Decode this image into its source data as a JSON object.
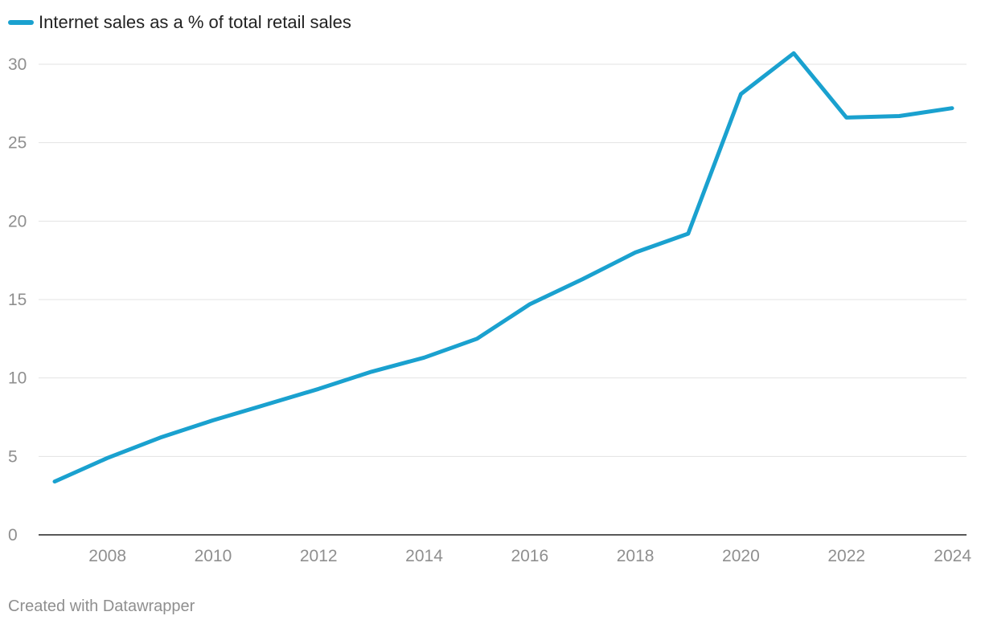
{
  "chart_data": {
    "type": "line",
    "title": "",
    "xlabel": "",
    "ylabel": "",
    "x": [
      2007,
      2008,
      2009,
      2010,
      2011,
      2012,
      2013,
      2014,
      2015,
      2016,
      2017,
      2018,
      2019,
      2020,
      2021,
      2022,
      2023,
      2024
    ],
    "series": [
      {
        "name": "Internet sales as a % of total retail sales",
        "color": "#1aa1cf",
        "values": [
          3.4,
          4.9,
          6.2,
          7.3,
          8.3,
          9.3,
          10.4,
          11.3,
          12.5,
          14.7,
          16.3,
          18.0,
          19.2,
          28.1,
          30.7,
          26.6,
          26.7,
          27.2
        ]
      }
    ],
    "xlim": [
      2007,
      2024
    ],
    "ylim": [
      0,
      30
    ],
    "xticks": [
      "2008",
      "2010",
      "2012",
      "2014",
      "2016",
      "2018",
      "2020",
      "2022",
      "2024"
    ],
    "yticks": [
      "0",
      "5",
      "10",
      "15",
      "20",
      "25",
      "30"
    ],
    "grid": true,
    "legend_position": "top-left"
  },
  "footer": {
    "credit": "Created with Datawrapper"
  }
}
